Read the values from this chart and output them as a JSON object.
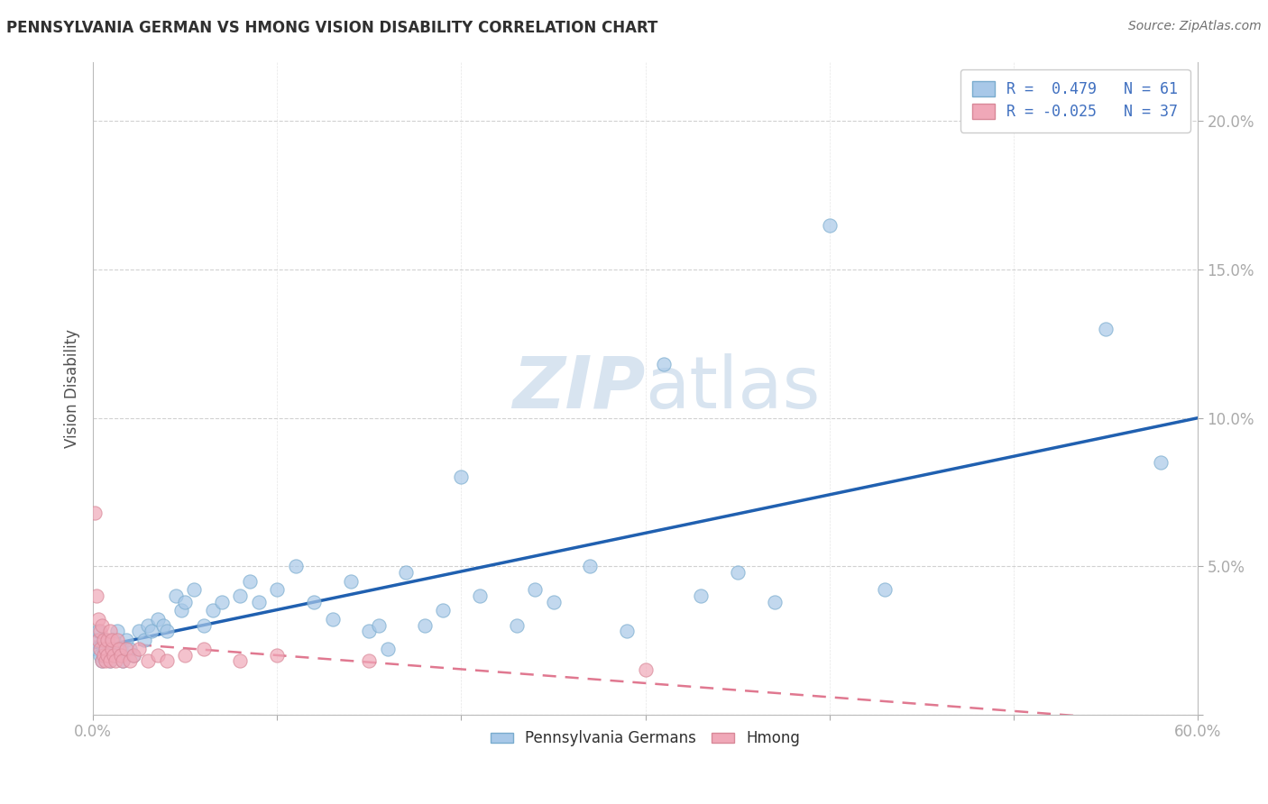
{
  "title": "PENNSYLVANIA GERMAN VS HMONG VISION DISABILITY CORRELATION CHART",
  "source": "Source: ZipAtlas.com",
  "ylabel": "Vision Disability",
  "xlim": [
    0.0,
    0.6
  ],
  "ylim": [
    0.0,
    0.22
  ],
  "yticks": [
    0.0,
    0.05,
    0.1,
    0.15,
    0.2
  ],
  "ytick_labels": [
    "",
    "5.0%",
    "10.0%",
    "15.0%",
    "20.0%"
  ],
  "xtick_vals": [
    0.0,
    0.1,
    0.2,
    0.3,
    0.4,
    0.5,
    0.6
  ],
  "xtick_labels_show": [
    "0.0%",
    "",
    "",
    "",
    "",
    "",
    "60.0%"
  ],
  "blue_color": "#a8c8e8",
  "pink_color": "#f0a8b8",
  "blue_edge_color": "#7aacce",
  "pink_edge_color": "#d88898",
  "blue_line_color": "#2060b0",
  "pink_line_color": "#e07890",
  "watermark_color": "#d8e4f0",
  "background_color": "#ffffff",
  "grid_color": "#cccccc",
  "tick_color": "#7090c0",
  "title_color": "#303030",
  "source_color": "#707070",
  "legend_text_color": "#4070c0",
  "ylabel_color": "#505050",
  "pennsylvania_x": [
    0.001,
    0.002,
    0.003,
    0.004,
    0.005,
    0.006,
    0.007,
    0.008,
    0.009,
    0.01,
    0.011,
    0.012,
    0.013,
    0.015,
    0.016,
    0.018,
    0.02,
    0.022,
    0.025,
    0.028,
    0.03,
    0.032,
    0.035,
    0.038,
    0.04,
    0.045,
    0.048,
    0.05,
    0.055,
    0.06,
    0.065,
    0.07,
    0.08,
    0.085,
    0.09,
    0.1,
    0.11,
    0.12,
    0.13,
    0.14,
    0.15,
    0.155,
    0.16,
    0.17,
    0.18,
    0.19,
    0.2,
    0.21,
    0.23,
    0.24,
    0.25,
    0.27,
    0.29,
    0.31,
    0.33,
    0.35,
    0.37,
    0.4,
    0.43,
    0.55,
    0.58
  ],
  "pennsylvania_y": [
    0.025,
    0.022,
    0.028,
    0.02,
    0.018,
    0.022,
    0.025,
    0.02,
    0.018,
    0.022,
    0.025,
    0.02,
    0.028,
    0.022,
    0.018,
    0.025,
    0.022,
    0.02,
    0.028,
    0.025,
    0.03,
    0.028,
    0.032,
    0.03,
    0.028,
    0.04,
    0.035,
    0.038,
    0.042,
    0.03,
    0.035,
    0.038,
    0.04,
    0.045,
    0.038,
    0.042,
    0.05,
    0.038,
    0.032,
    0.045,
    0.028,
    0.03,
    0.022,
    0.048,
    0.03,
    0.035,
    0.08,
    0.04,
    0.03,
    0.042,
    0.038,
    0.05,
    0.028,
    0.118,
    0.04,
    0.048,
    0.038,
    0.165,
    0.042,
    0.13,
    0.085
  ],
  "hmong_x": [
    0.001,
    0.002,
    0.003,
    0.003,
    0.004,
    0.004,
    0.005,
    0.005,
    0.006,
    0.006,
    0.007,
    0.007,
    0.008,
    0.008,
    0.009,
    0.009,
    0.01,
    0.01,
    0.011,
    0.012,
    0.013,
    0.014,
    0.015,
    0.016,
    0.018,
    0.02,
    0.022,
    0.025,
    0.03,
    0.035,
    0.04,
    0.05,
    0.06,
    0.08,
    0.1,
    0.15,
    0.3
  ],
  "hmong_y": [
    0.068,
    0.04,
    0.032,
    0.025,
    0.028,
    0.022,
    0.03,
    0.018,
    0.025,
    0.02,
    0.022,
    0.018,
    0.025,
    0.02,
    0.028,
    0.018,
    0.022,
    0.025,
    0.02,
    0.018,
    0.025,
    0.022,
    0.02,
    0.018,
    0.022,
    0.018,
    0.02,
    0.022,
    0.018,
    0.02,
    0.018,
    0.02,
    0.022,
    0.018,
    0.02,
    0.018,
    0.015
  ]
}
